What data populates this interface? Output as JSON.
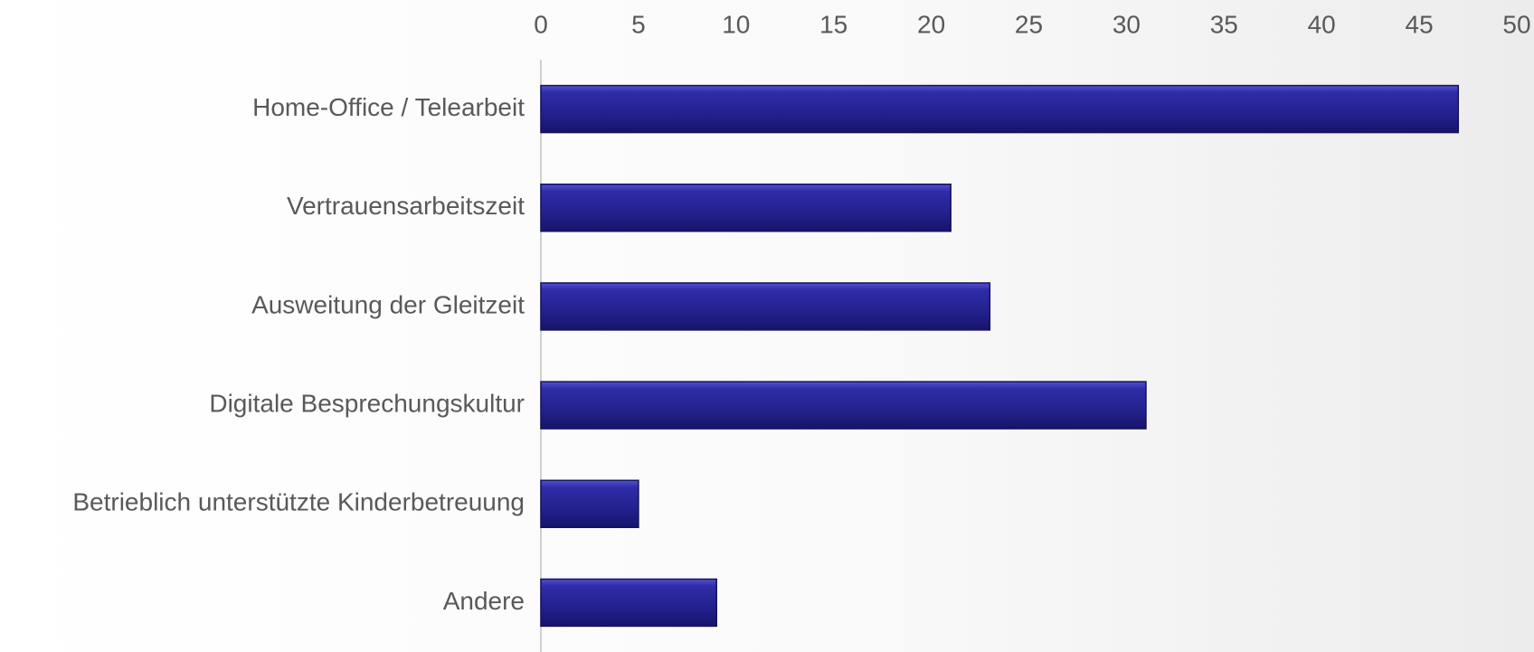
{
  "chart_data": {
    "type": "barh",
    "categories": [
      "Home-Office / Telearbeit",
      "Vertrauensarbeitszeit",
      "Ausweitung der Gleitzeit",
      "Digitale Besprechungskultur",
      "Betrieblich unterstützte Kinderbetreuung",
      "Andere"
    ],
    "values": [
      47,
      21,
      23,
      31,
      5,
      9
    ],
    "color": "#25238f",
    "xlim": [
      0,
      50
    ],
    "xticks": [
      0,
      5,
      10,
      15,
      20,
      25,
      30,
      35,
      40,
      45,
      50
    ],
    "grid": false
  }
}
